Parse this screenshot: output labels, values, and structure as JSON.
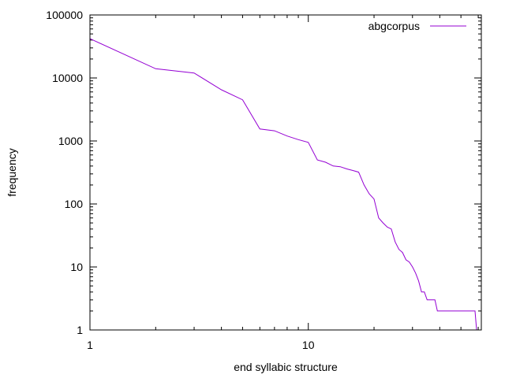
{
  "chart_data": {
    "type": "line",
    "title": "",
    "xlabel": "end syllabic structure",
    "ylabel": "frequency",
    "x_scale": "log",
    "y_scale": "log",
    "xlim": [
      1,
      62
    ],
    "ylim": [
      1,
      100000
    ],
    "x_ticks": [
      {
        "value": 1,
        "label": "1"
      },
      {
        "value": 10,
        "label": "10"
      }
    ],
    "y_ticks": [
      {
        "value": 1,
        "label": "1"
      },
      {
        "value": 10,
        "label": "10"
      },
      {
        "value": 100,
        "label": "100"
      },
      {
        "value": 1000,
        "label": "1000"
      },
      {
        "value": 10000,
        "label": "10000"
      },
      {
        "value": 100000,
        "label": "100000"
      }
    ],
    "grid": false,
    "legend_position": "top-right",
    "series": [
      {
        "name": "abgcorpus",
        "color": "#9400d3",
        "x": [
          1,
          2,
          3,
          4,
          5,
          6,
          7,
          8,
          9,
          10,
          11,
          12,
          13,
          14,
          15,
          16,
          17,
          18,
          19,
          20,
          21,
          22,
          23,
          24,
          25,
          26,
          27,
          28,
          29,
          30,
          31,
          32,
          33,
          34,
          35,
          36,
          37,
          38,
          39,
          40,
          41,
          42,
          43,
          44,
          45,
          46,
          47,
          48,
          49,
          50,
          51,
          52,
          53,
          54,
          55,
          56,
          57,
          58,
          59
        ],
        "values": [
          42000,
          14000,
          12000,
          6500,
          4500,
          1550,
          1450,
          1200,
          1050,
          950,
          500,
          460,
          400,
          390,
          360,
          340,
          320,
          200,
          145,
          120,
          60,
          50,
          43,
          40,
          25,
          19,
          17,
          13,
          12,
          10,
          8,
          6,
          4,
          4,
          3,
          3,
          3,
          3,
          2,
          2,
          2,
          2,
          2,
          2,
          2,
          2,
          2,
          2,
          2,
          2,
          2,
          2,
          2,
          2,
          2,
          2,
          2,
          2,
          1
        ]
      }
    ]
  }
}
